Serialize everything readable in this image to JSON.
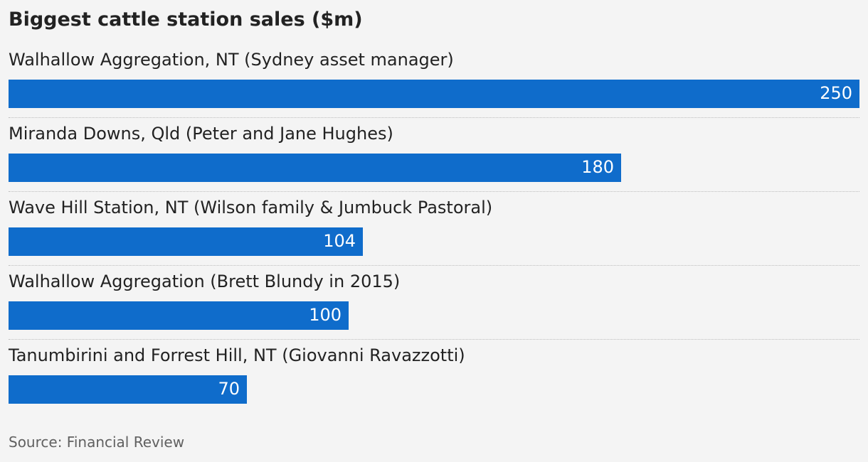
{
  "title": "Biggest cattle station sales ($m)",
  "source": "Source: Financial Review",
  "colors": {
    "bar": "#0f6ccb",
    "background": "#f4f4f4",
    "value_text": "#ffffff"
  },
  "chart_data": {
    "type": "bar",
    "orientation": "horizontal",
    "title": "Biggest cattle station sales ($m)",
    "categories": [
      "Walhallow Aggregation, NT (Sydney asset manager)",
      "Miranda Downs, Qld (Peter and Jane Hughes)",
      "Wave Hill Station, NT (Wilson family & Jumbuck Pastoral)",
      "Walhallow Aggregation (Brett Blundy in 2015)",
      "Tanumbirini and Forrest Hill, NT (Giovanni Ravazzotti)"
    ],
    "values": [
      250,
      180,
      104,
      100,
      70
    ],
    "xlim": [
      0,
      250
    ],
    "grid": false,
    "legend": "none",
    "data_labels": "inside-end"
  }
}
